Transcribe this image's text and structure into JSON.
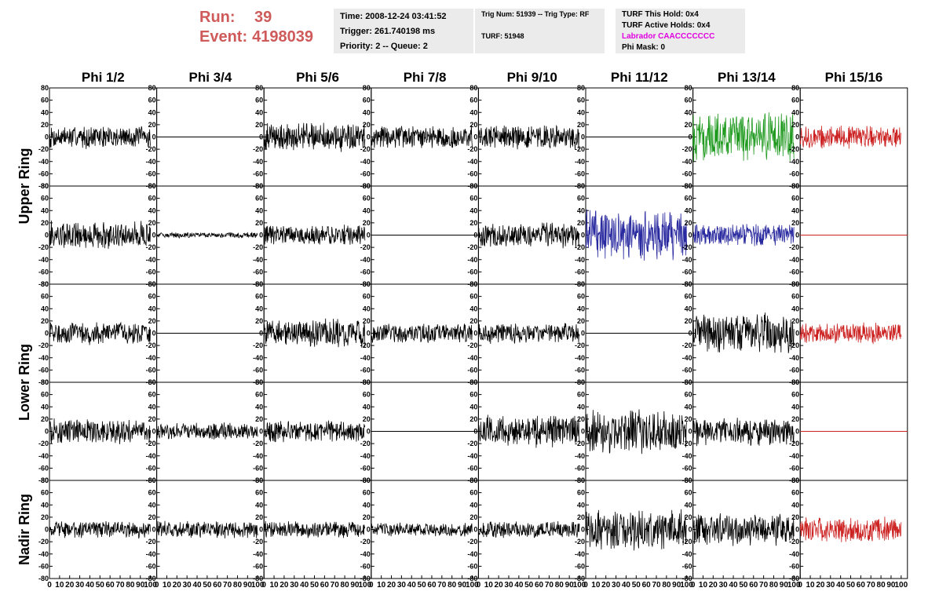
{
  "header": {
    "run_label": "Run:",
    "run_value": "39",
    "event_label": "Event:",
    "event_value": "4198039",
    "time": "Time: 2008-12-24 03:41:52",
    "trigger": "Trigger: 261.740198 ms",
    "priority": "Priority: 2 -- Queue: 2",
    "trig_num": "Trig Num: 51939 -- Trig Type: RF",
    "turf": "TURF: 51948",
    "turf_this_hold": "TURF This Hold: 0x4",
    "turf_active_holds": "TURF Active Holds: 0x4",
    "labrador": "Labrador CAACCCCCCC",
    "phi_mask": "Phi Mask: 0"
  },
  "colors": {
    "run_red": "#cf5a5a",
    "labrador_magenta": "#e000e0",
    "trace_black": "#000000",
    "trace_green": "#1f9a1f",
    "trace_blue": "#2a2aa0",
    "trace_red": "#cc2222",
    "panel_gray": "#ebebeb"
  },
  "chart_data": {
    "type": "line",
    "columns": [
      "Phi 1/2",
      "Phi 3/4",
      "Phi 5/6",
      "Phi 7/8",
      "Phi 9/10",
      "Phi 11/12",
      "Phi 13/14",
      "Phi 15/16"
    ],
    "ring_labels": [
      {
        "text": "Upper Ring",
        "rows": [
          0,
          1
        ]
      },
      {
        "text": "Lower Ring",
        "rows": [
          2,
          3
        ]
      },
      {
        "text": "Nadir Ring",
        "rows": [
          4
        ]
      }
    ],
    "ylim": [
      -80,
      80
    ],
    "yticks": [
      80,
      60,
      40,
      20,
      0,
      -20,
      -40,
      -60,
      -80
    ],
    "xlim": [
      0,
      100
    ],
    "xtick_labels": [
      "0",
      "10",
      "20",
      "30",
      "40",
      "50",
      "60",
      "70",
      "80",
      "90",
      "100"
    ],
    "grid": false,
    "x_samples": 260,
    "traces": [
      [
        {
          "color": "black",
          "amplitude": 20,
          "flat": false
        },
        {
          "color": "black",
          "amplitude": 0,
          "flat": true
        },
        {
          "color": "black",
          "amplitude": 25,
          "flat": false
        },
        {
          "color": "black",
          "amplitude": 20,
          "flat": false
        },
        {
          "color": "black",
          "amplitude": 22,
          "flat": false
        },
        {
          "color": "black",
          "amplitude": 0,
          "flat": true
        },
        {
          "color": "green",
          "amplitude": 42,
          "flat": false
        },
        {
          "color": "red",
          "amplitude": 20,
          "flat": false
        }
      ],
      [
        {
          "color": "black",
          "amplitude": 25,
          "flat": false
        },
        {
          "color": "black",
          "amplitude": 5,
          "flat": false
        },
        {
          "color": "black",
          "amplitude": 18,
          "flat": false
        },
        {
          "color": "black",
          "amplitude": 0,
          "flat": true
        },
        {
          "color": "black",
          "amplitude": 22,
          "flat": false
        },
        {
          "color": "blue",
          "amplitude": 45,
          "flat": false
        },
        {
          "color": "blue",
          "amplitude": 20,
          "flat": false
        },
        {
          "color": "red",
          "amplitude": 0,
          "flat": true
        }
      ],
      [
        {
          "color": "black",
          "amplitude": 20,
          "flat": false
        },
        {
          "color": "black",
          "amplitude": 0,
          "flat": true
        },
        {
          "color": "black",
          "amplitude": 25,
          "flat": false
        },
        {
          "color": "black",
          "amplitude": 18,
          "flat": false
        },
        {
          "color": "black",
          "amplitude": 18,
          "flat": false
        },
        {
          "color": "black",
          "amplitude": 0,
          "flat": true
        },
        {
          "color": "black",
          "amplitude": 35,
          "flat": false
        },
        {
          "color": "red",
          "amplitude": 18,
          "flat": false
        }
      ],
      [
        {
          "color": "black",
          "amplitude": 22,
          "flat": false
        },
        {
          "color": "black",
          "amplitude": 15,
          "flat": false
        },
        {
          "color": "black",
          "amplitude": 20,
          "flat": false
        },
        {
          "color": "black",
          "amplitude": 0,
          "flat": true
        },
        {
          "color": "black",
          "amplitude": 28,
          "flat": false
        },
        {
          "color": "black",
          "amplitude": 38,
          "flat": false
        },
        {
          "color": "black",
          "amplitude": 25,
          "flat": false
        },
        {
          "color": "red",
          "amplitude": 0,
          "flat": true
        }
      ],
      [
        {
          "color": "black",
          "amplitude": 15,
          "flat": false
        },
        {
          "color": "black",
          "amplitude": 15,
          "flat": false
        },
        {
          "color": "black",
          "amplitude": 15,
          "flat": false
        },
        {
          "color": "black",
          "amplitude": 12,
          "flat": false
        },
        {
          "color": "black",
          "amplitude": 15,
          "flat": false
        },
        {
          "color": "black",
          "amplitude": 35,
          "flat": false
        },
        {
          "color": "black",
          "amplitude": 28,
          "flat": false
        },
        {
          "color": "red",
          "amplitude": 22,
          "flat": false
        }
      ]
    ]
  }
}
